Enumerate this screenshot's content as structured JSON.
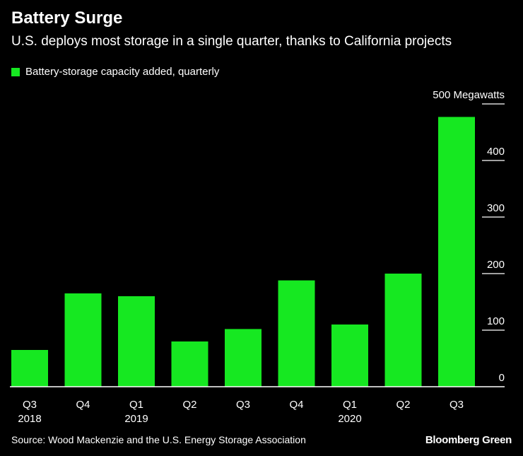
{
  "title": "Battery Surge",
  "subtitle": "U.S. deploys most storage in a single quarter, thanks to California projects",
  "legend": {
    "label": "Battery-storage capacity added, quarterly",
    "color": "#16e821"
  },
  "source": "Source: Wood Mackenzie and the U.S. Energy Storage Association",
  "brand": "Bloomberg Green",
  "chart_data": {
    "type": "bar",
    "title": "Battery Surge",
    "subtitle": "U.S. deploys most storage in a single quarter, thanks to California projects",
    "categories": [
      "Q3",
      "Q4",
      "Q1",
      "Q2",
      "Q3",
      "Q4",
      "Q1",
      "Q2",
      "Q3"
    ],
    "year_labels": [
      "2018",
      "",
      "2019",
      "",
      "",
      "",
      "2020",
      "",
      ""
    ],
    "series": [
      {
        "name": "Battery-storage capacity added, quarterly",
        "values": [
          65,
          165,
          160,
          80,
          102,
          188,
          110,
          200,
          477
        ],
        "color": "#16e821"
      }
    ],
    "ylim": [
      0,
      500
    ],
    "yticks": [
      0,
      100,
      200,
      300,
      400,
      500
    ],
    "ytick_labels": [
      "0",
      "100",
      "200",
      "300",
      "400",
      "500 Megawatts"
    ],
    "xlabel": "",
    "ylabel": "Megawatts",
    "legend_position": "top-left"
  }
}
